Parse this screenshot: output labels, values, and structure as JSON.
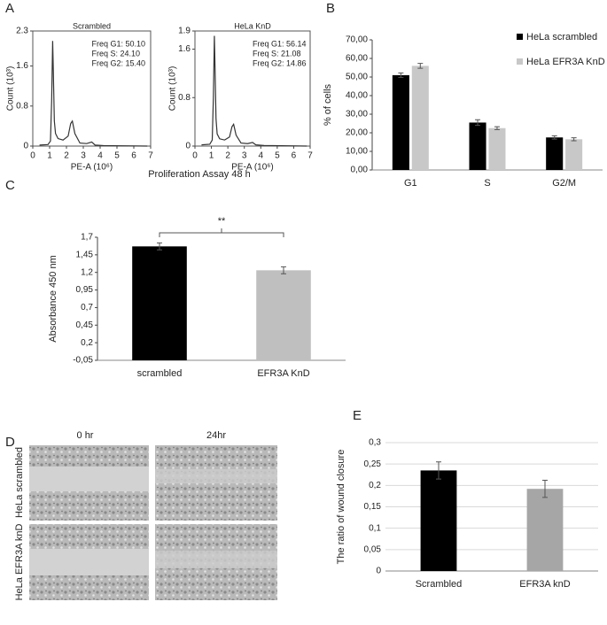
{
  "panel_labels": [
    "A",
    "B",
    "C",
    "D",
    "E"
  ],
  "wound_assay": {
    "columns": [
      "0 hr",
      "24hr"
    ],
    "rows": [
      "HeLa scrambled",
      "HeLa EFR3A knD"
    ]
  },
  "chart_data": [
    {
      "type": "histogram_line",
      "title": "Scrambled",
      "xlabel": "PE-A (10⁶)",
      "ylabel": "Count (10³)",
      "annotations": [
        "Freq G1: 50.10",
        "Freq S: 24.10",
        "Freq G2: 15.40"
      ],
      "x": [
        0.4,
        0.9,
        1.05,
        1.12,
        1.18,
        1.22,
        1.28,
        1.35,
        1.5,
        1.8,
        2.1,
        2.25,
        2.35,
        2.5,
        2.8,
        3.2,
        3.5,
        3.7,
        4.2,
        6.8
      ],
      "values": [
        0.02,
        0.03,
        0.1,
        0.9,
        2.1,
        1.5,
        0.5,
        0.25,
        0.15,
        0.12,
        0.2,
        0.45,
        0.5,
        0.25,
        0.06,
        0.05,
        0.08,
        0.02,
        0.01,
        0.0
      ],
      "color": "#333333",
      "xlim": [
        0,
        7
      ],
      "ylim": [
        0,
        2.3
      ],
      "xticks": [
        0,
        1,
        2,
        3,
        4,
        5,
        6,
        7
      ],
      "yticks": [
        0,
        0.8,
        1.6,
        2.3
      ]
    },
    {
      "type": "histogram_line",
      "title": "HeLa KnD",
      "xlabel": "PE-A (10⁶)",
      "ylabel": "Count (10³)",
      "annotations": [
        "Freq G1: 56.14",
        "Freq S: 21.08",
        "Freq G2: 14.86"
      ],
      "x": [
        0.4,
        0.9,
        1.05,
        1.12,
        1.18,
        1.22,
        1.28,
        1.35,
        1.5,
        1.8,
        2.1,
        2.25,
        2.35,
        2.5,
        2.8,
        3.2,
        3.5,
        3.7,
        4.2,
        6.8
      ],
      "values": [
        0.02,
        0.03,
        0.1,
        0.8,
        1.82,
        1.3,
        0.45,
        0.2,
        0.12,
        0.1,
        0.15,
        0.32,
        0.36,
        0.18,
        0.05,
        0.04,
        0.06,
        0.02,
        0.01,
        0.0
      ],
      "color": "#333333",
      "xlim": [
        0,
        7
      ],
      "ylim": [
        0,
        1.9
      ],
      "xticks": [
        0,
        1,
        2,
        3,
        4,
        5,
        6,
        7
      ],
      "yticks": [
        0,
        0.8,
        1.6,
        1.9
      ]
    },
    {
      "type": "bar",
      "ylabel": "% of cells",
      "categories": [
        "G1",
        "S",
        "G2/M"
      ],
      "series": [
        {
          "name": "HeLa scrambled",
          "color": "#000000",
          "values": [
            51,
            25.5,
            17.5
          ],
          "errors": [
            1.2,
            1.5,
            0.9
          ]
        },
        {
          "name": "HeLa EFR3A KnD",
          "color": "#c8c8c8",
          "values": [
            56,
            22.5,
            16.5
          ],
          "errors": [
            1.3,
            0.8,
            0.8
          ]
        }
      ],
      "ylim": [
        0,
        70
      ],
      "yticks": [
        {
          "value": 0,
          "label": "0,00"
        },
        {
          "value": 10,
          "label": "10,00"
        },
        {
          "value": 20,
          "label": "20,00"
        },
        {
          "value": 30,
          "label": "30,00"
        },
        {
          "value": 40,
          "label": "40,00"
        },
        {
          "value": 50,
          "label": "50,00"
        },
        {
          "value": 60,
          "label": "60,00"
        },
        {
          "value": 70,
          "label": "70,00"
        }
      ],
      "grid": false
    },
    {
      "type": "bar",
      "title": "Proliferation Assay 48 h",
      "ylabel": "Absorbance  450 nm",
      "annotations": [
        "**"
      ],
      "categories": [
        "scrambled",
        "EFR3A KnD"
      ],
      "series": [
        {
          "colors": [
            "#000000",
            "#bfbfbf"
          ],
          "values": [
            1.57,
            1.23
          ],
          "errors": [
            0.05,
            0.05
          ]
        }
      ],
      "ylim": [
        -0.05,
        1.7
      ],
      "yticks": [
        {
          "value": -0.05,
          "label": "-0,05"
        },
        {
          "value": 0.2,
          "label": "0,2"
        },
        {
          "value": 0.45,
          "label": "0,45"
        },
        {
          "value": 0.7,
          "label": "0,7"
        },
        {
          "value": 0.95,
          "label": "0,95"
        },
        {
          "value": 1.2,
          "label": "1,2"
        },
        {
          "value": 1.45,
          "label": "1,45"
        },
        {
          "value": 1.7,
          "label": "1,7"
        }
      ],
      "grid": false
    },
    {
      "type": "bar",
      "ylabel": "The ratio of wound closure",
      "categories": [
        "Scrambled",
        "EFR3A knD"
      ],
      "series": [
        {
          "colors": [
            "#000000",
            "#a6a6a6"
          ],
          "values": [
            0.235,
            0.192
          ],
          "errors": [
            0.02,
            0.02
          ]
        }
      ],
      "ylim": [
        0,
        0.3
      ],
      "yticks": [
        0,
        {
          "value": 0.05,
          "label": "0,05"
        },
        {
          "value": 0.1,
          "label": "0,1"
        },
        {
          "value": 0.15,
          "label": "0,15"
        },
        {
          "value": 0.2,
          "label": "0,2"
        },
        {
          "value": 0.25,
          "label": "0,25"
        },
        {
          "value": 0.3,
          "label": "0,3"
        }
      ],
      "grid": true
    }
  ]
}
